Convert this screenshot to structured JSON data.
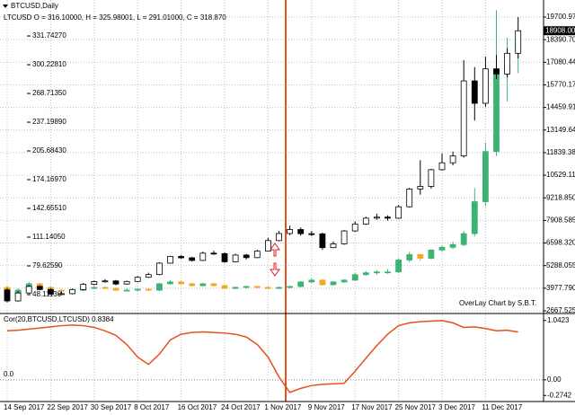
{
  "chart_data": [
    {
      "type": "candlestick",
      "title": "BTCUSD,Daily",
      "subtitle": "LTCUSD O = 316.10000, H = 325.98001, L = 291.01000, C = 318.870",
      "annotation": "OverLay Chart by S.B.T.",
      "categories": [
        "14 Sep 2017",
        null,
        null,
        null,
        "22 Sep 2017",
        null,
        null,
        null,
        "30 Sep 2017",
        null,
        null,
        null,
        "8 Oct 2017",
        null,
        null,
        null,
        "16 Oct 2017",
        null,
        null,
        null,
        "24 Oct 2017",
        null,
        null,
        null,
        "1 Nov 2017",
        null,
        null,
        null,
        "9 Nov 2017",
        null,
        null,
        null,
        "17 Nov 2017",
        null,
        null,
        null,
        "25 Nov 2017",
        null,
        null,
        null,
        "3 Dec 2017",
        null,
        null,
        null,
        "11 Dec 2017",
        null,
        null,
        null
      ],
      "series": [
        {
          "axis": "y2",
          "up_color": "#3cb371",
          "down_color": "#f5a623",
          "open": [
            56,
            48,
            53,
            60,
            56,
            53,
            52,
            53,
            55,
            56,
            55,
            53,
            53,
            54,
            53,
            60,
            62,
            60,
            58,
            60,
            58,
            55,
            56,
            57,
            56,
            55,
            56,
            57,
            62,
            64,
            59,
            62,
            64,
            70,
            72,
            73,
            73,
            86,
            92,
            88,
            97,
            100,
            103,
            115,
            150,
            205,
            295,
            316.1
          ],
          "high": [
            58,
            55,
            62,
            61,
            57,
            54,
            55,
            56,
            57,
            57,
            56,
            55,
            55,
            55,
            61,
            64,
            63,
            61,
            61,
            61,
            59,
            57,
            58,
            58,
            57,
            57,
            58,
            63,
            66,
            65,
            63,
            65,
            72,
            74,
            75,
            76,
            88,
            95,
            93,
            98,
            102,
            106,
            118,
            165,
            215,
            360,
            330,
            325.98
          ],
          "low": [
            44,
            47,
            52,
            55,
            52,
            51,
            51,
            52,
            54,
            54,
            52,
            52,
            52,
            52,
            52,
            59,
            59,
            57,
            57,
            57,
            54,
            54,
            55,
            55,
            54,
            54,
            55,
            56,
            61,
            58,
            58,
            61,
            63,
            69,
            70,
            71,
            72,
            84,
            85,
            87,
            95,
            98,
            101,
            112,
            145,
            200,
            260,
            291.01
          ],
          "close": [
            48,
            53,
            60,
            56,
            53,
            52,
            53,
            55,
            56,
            55,
            53,
            53,
            54,
            53,
            60,
            62,
            60,
            58,
            60,
            58,
            55,
            56,
            57,
            56,
            55,
            56,
            57,
            62,
            64,
            59,
            62,
            64,
            70,
            72,
            73,
            73,
            86,
            92,
            88,
            97,
            100,
            103,
            115,
            150,
            205,
            295,
            300,
            318.87
          ]
        },
        {
          "up_color": "#ffffff",
          "down_color": "#000000",
          "outline": "#000000",
          "open": [
            3880,
            3240,
            3700,
            4080,
            3900,
            3630,
            3660,
            3900,
            4200,
            4360,
            4400,
            4220,
            4370,
            4610,
            4770,
            5430,
            5820,
            5740,
            5590,
            6010,
            5980,
            5510,
            5900,
            5750,
            6130,
            6740,
            7150,
            7380,
            7140,
            7130,
            6330,
            6550,
            7300,
            7700,
            8040,
            8100,
            8040,
            8700,
            9730,
            9880,
            10850,
            11250,
            11650,
            16000,
            14700,
            16700,
            16400,
            17600
          ],
          "high": [
            3980,
            3800,
            4150,
            4150,
            3980,
            3780,
            3950,
            4280,
            4420,
            4500,
            4450,
            4420,
            4680,
            4880,
            5480,
            5860,
            5900,
            5800,
            6100,
            6150,
            6050,
            5980,
            5970,
            6200,
            6900,
            7300,
            7600,
            7500,
            7300,
            7200,
            6700,
            7350,
            7850,
            8120,
            8300,
            8200,
            8800,
            9800,
            11400,
            10900,
            11800,
            11900,
            17200,
            16800,
            17400,
            17500,
            17900,
            19700
          ],
          "low": [
            3150,
            3200,
            3650,
            3850,
            3600,
            3580,
            3620,
            3880,
            4150,
            4300,
            4150,
            4180,
            4330,
            4570,
            4730,
            5400,
            5680,
            5520,
            5550,
            5920,
            5450,
            5480,
            5650,
            5720,
            6100,
            6700,
            7050,
            7030,
            7000,
            6200,
            6300,
            6500,
            7250,
            7650,
            7950,
            7900,
            8000,
            8650,
            9400,
            9750,
            10800,
            11100,
            11550,
            13700,
            14500,
            16100,
            16200,
            17300
          ],
          "close": [
            3240,
            3700,
            4080,
            3900,
            3630,
            3660,
            3900,
            4200,
            4360,
            4400,
            4220,
            4370,
            4610,
            4770,
            5430,
            5820,
            5740,
            5590,
            6010,
            5980,
            5510,
            5900,
            5750,
            6130,
            6740,
            7150,
            7380,
            7140,
            7130,
            6330,
            6550,
            7300,
            7700,
            8040,
            8100,
            8040,
            8700,
            9730,
            9880,
            10850,
            11250,
            11650,
            16000,
            14700,
            16700,
            16400,
            17600,
            18908
          ]
        }
      ],
      "ylim": [
        2563,
        20274
      ],
      "yticks": [
        2667.525,
        {
          "value": 3977.79,
          "label": "3977.790"
        },
        5288.055,
        {
          "value": 6598.32,
          "label": "6598.320"
        },
        7908.585,
        {
          "value": 9218.85,
          "label": "9218.850"
        },
        10529.115,
        {
          "value": 11839.38,
          "label": "11839.380"
        },
        13149.645,
        {
          "value": 14459.91,
          "label": "14459.910"
        },
        15770.175,
        {
          "value": 17080.44,
          "label": "17080.440"
        },
        18390.705,
        {
          "value": 19700.97,
          "label": "19700.970"
        }
      ],
      "y2lim": [
        28.4,
        363.3
      ],
      "y2ticks": [
        {
          "value": 331.7427,
          "label": "331.74270"
        },
        {
          "value": 300.2281,
          "label": "300.22810"
        },
        {
          "value": 268.7135,
          "label": "268.71350"
        },
        {
          "value": 237.1989,
          "label": "237.19890"
        },
        {
          "value": 205.6843,
          "label": "205.68430"
        },
        {
          "value": 174.1697,
          "label": "174.16970"
        },
        {
          "value": 142.6551,
          "label": "142.65510"
        },
        {
          "value": 111.1405,
          "label": "111.14050"
        },
        {
          "value": 79.6259,
          "label": "79.62590"
        },
        {
          "value": 48.1113,
          "label": "48.11130"
        }
      ],
      "last_price": {
        "value": 18908,
        "label": "18908.000"
      },
      "grid": true
    },
    {
      "type": "line",
      "title": "Cor(20,BTCUSD,LTCUSD) 0.8384",
      "color": "#e8501a",
      "values": [
        0.86,
        0.87,
        0.89,
        0.91,
        0.93,
        0.95,
        0.96,
        0.95,
        0.92,
        0.86,
        0.78,
        0.62,
        0.4,
        0.27,
        0.45,
        0.7,
        0.8,
        0.83,
        0.84,
        0.83,
        0.82,
        0.8,
        0.75,
        0.62,
        0.4,
        0.05,
        -0.22,
        -0.15,
        -0.1,
        -0.08,
        -0.07,
        -0.06,
        0.15,
        0.38,
        0.6,
        0.8,
        0.95,
        1,
        1.02,
        1.03,
        1.04,
        1,
        0.92,
        0.93,
        0.9,
        0.86,
        0.87,
        0.8384
      ],
      "ylim": [
        -0.365,
        1.148
      ],
      "yticks": [
        1.0423,
        {
          "value": 0,
          "label": "0.00"
        },
        -0.2742
      ],
      "level": {
        "value": 0,
        "label": "0.0"
      },
      "grid": true
    }
  ]
}
